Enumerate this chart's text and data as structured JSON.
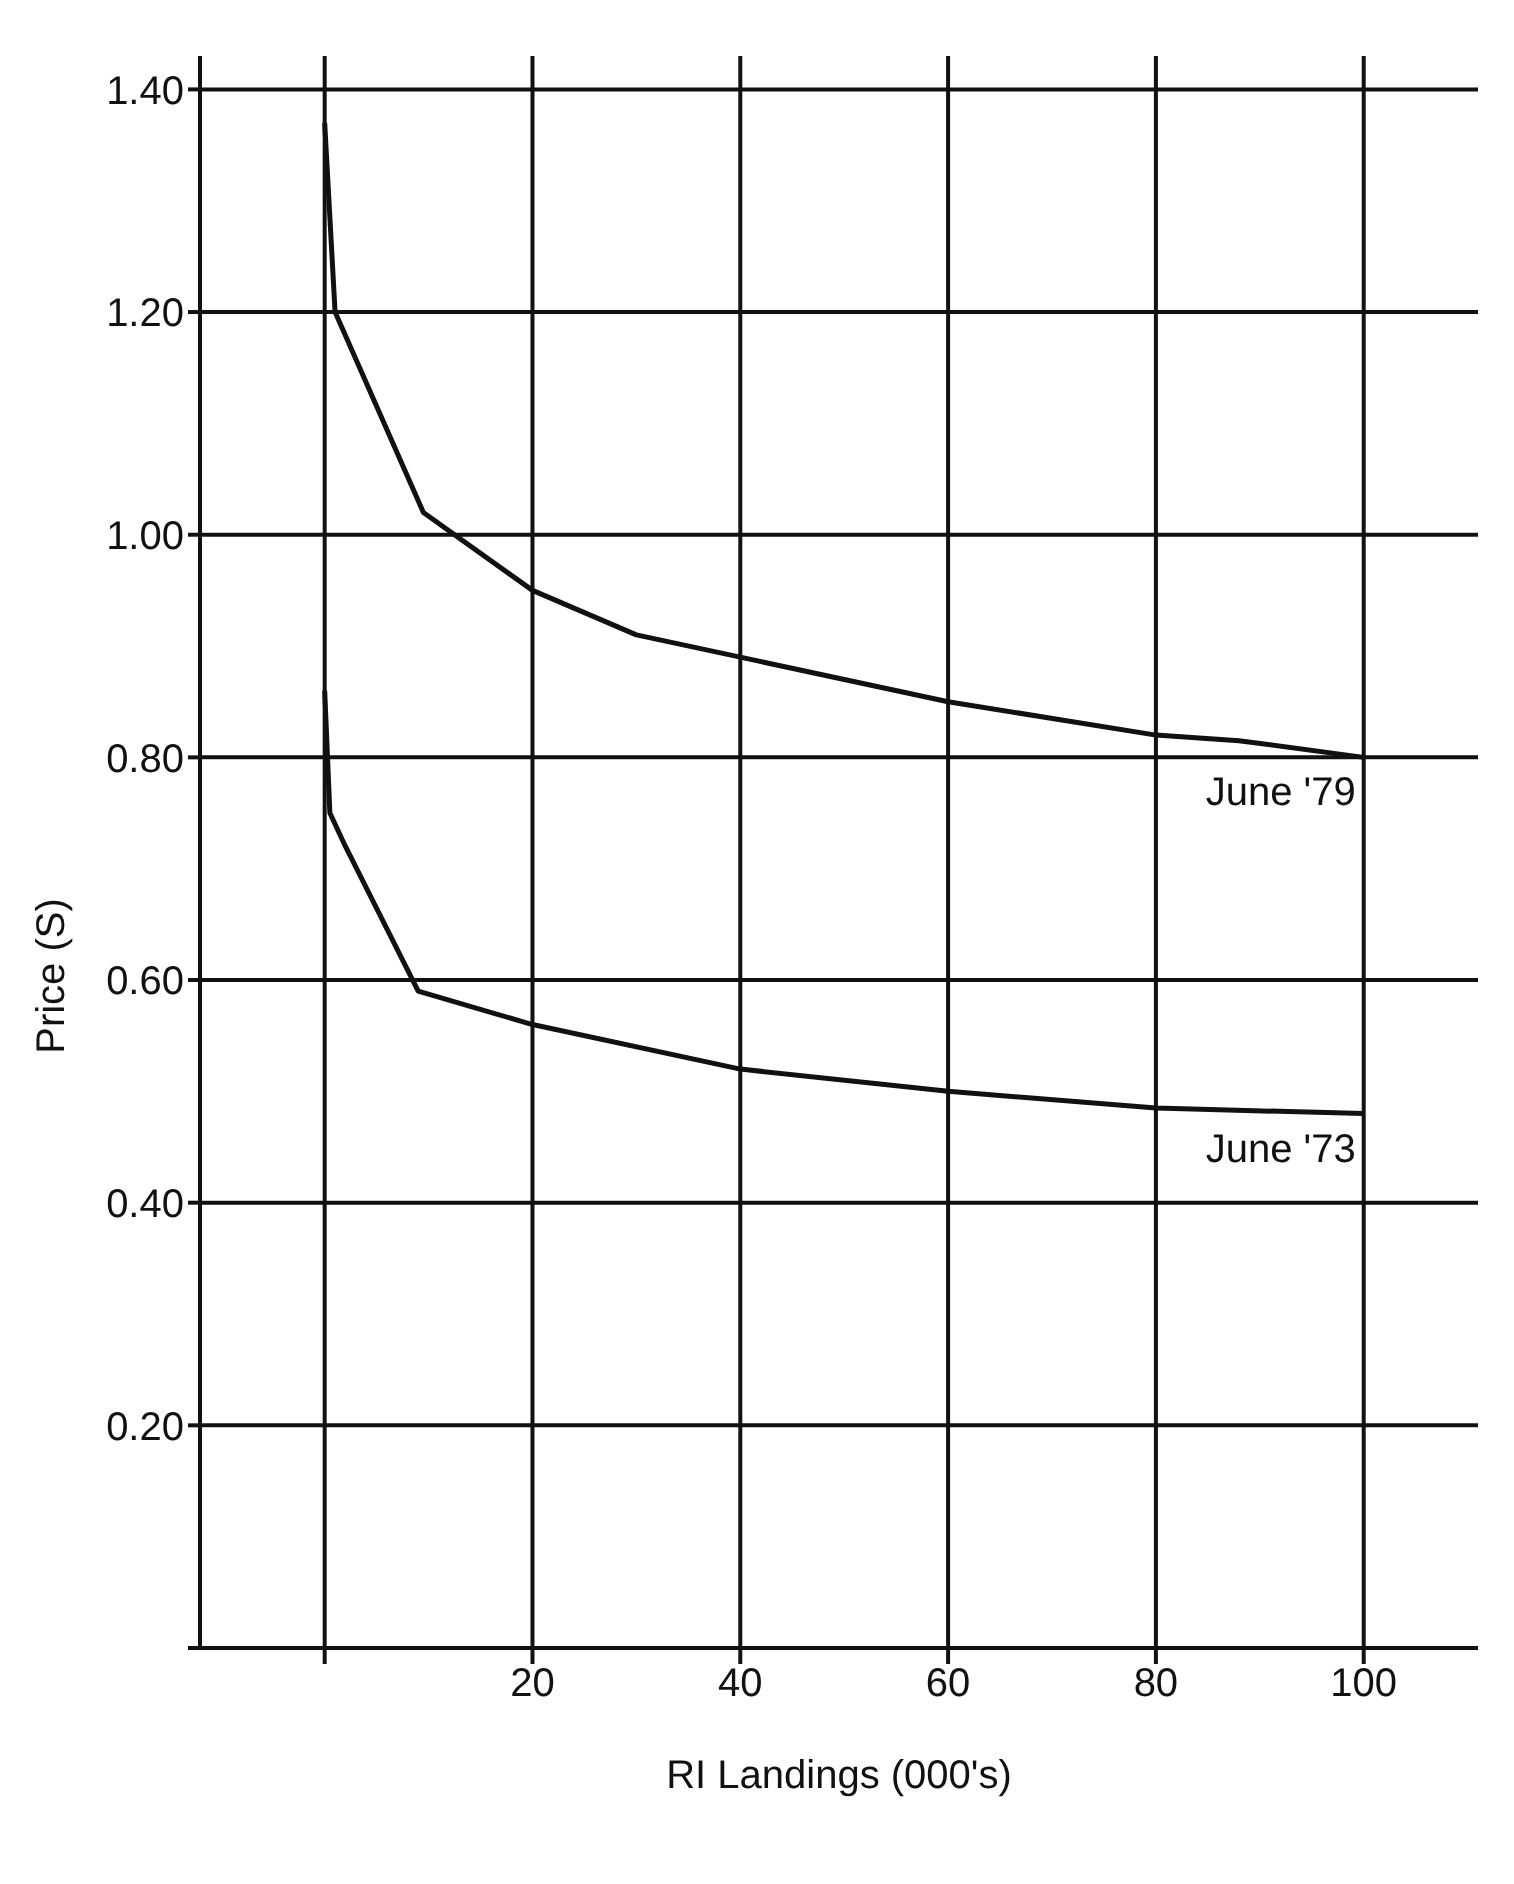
{
  "chart_data": {
    "type": "line",
    "xlabel": "RI Landings (000's)",
    "ylabel": "Price (S)",
    "xlim": [
      -12,
      111
    ],
    "ylim": [
      0,
      1.43
    ],
    "xticks": [
      {
        "value": 0,
        "label": null
      },
      20,
      40,
      60,
      80,
      100
    ],
    "yticks": [
      {
        "value": 0,
        "label": null
      },
      {
        "value": 0.2,
        "label": "0.20"
      },
      {
        "value": 0.4,
        "label": "0.40"
      },
      {
        "value": 0.6,
        "label": "0.60"
      },
      {
        "value": 0.8,
        "label": "0.80"
      },
      {
        "value": 1.0,
        "label": "1.00"
      },
      {
        "value": 1.2,
        "label": "1.20"
      },
      {
        "value": 1.4,
        "label": "1.40"
      }
    ],
    "grid": true,
    "marker": "none",
    "line_style": "solid",
    "series": [
      {
        "name": "June '79",
        "color": "#111111",
        "x": [
          0,
          1,
          9.5,
          20,
          30,
          40,
          60,
          80,
          88,
          100
        ],
        "values": [
          1.37,
          1.2,
          1.02,
          0.95,
          0.91,
          0.89,
          0.85,
          0.82,
          0.815,
          0.8
        ]
      },
      {
        "name": "June '73",
        "color": "#111111",
        "x": [
          0,
          0.5,
          2,
          9,
          20,
          40,
          60,
          80,
          100
        ],
        "values": [
          0.86,
          0.75,
          0.72,
          0.59,
          0.56,
          0.52,
          0.5,
          0.485,
          0.48
        ]
      }
    ]
  }
}
